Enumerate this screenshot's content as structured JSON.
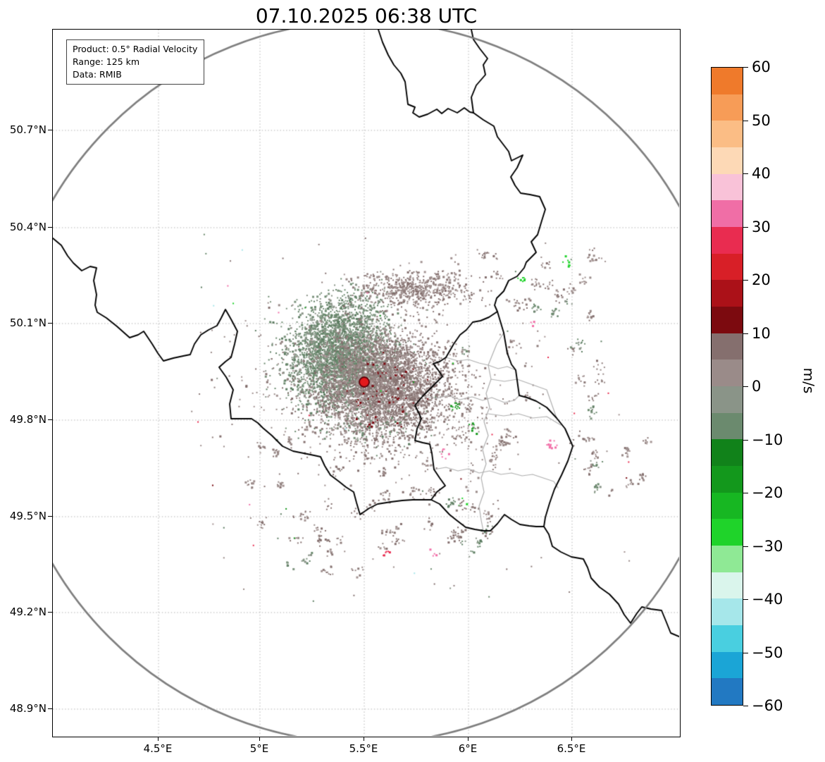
{
  "title": "07.10.2025 06:38 UTC",
  "info_box": {
    "product": "Product: 0.5° Radial Velocity",
    "range": "Range: 125 km",
    "data_source": "Data: RMIB"
  },
  "map": {
    "lat_tick_labels": [
      "50.7°N",
      "50.4°N",
      "50.1°N",
      "49.8°N",
      "49.5°N",
      "49.2°N",
      "48.9°N"
    ],
    "lon_tick_labels": [
      "4.5°E",
      "5°E",
      "5.5°E",
      "6°E",
      "6.5°E"
    ],
    "range_circle_color": "#7f7f7f",
    "radar_site_color": "#e31a1c",
    "radar_site_edge_color": "#5c0009",
    "country_border_color": "#000000",
    "district_border_color": "#b0b0b0",
    "gridline_color": "#b5b5b5",
    "echo_colors": {
      "outbound_weak": "#9a8b89",
      "outbound_dark": "#846f6e",
      "inbound_weak": "#8a9488",
      "inbound_sage": "#6b8a6e",
      "outbound_strong": "#790910",
      "inbound_strong": "#13981c"
    }
  },
  "colorbar": {
    "label": "m/s",
    "tick_labels": [
      "60",
      "50",
      "40",
      "30",
      "20",
      "10",
      "0",
      "−10",
      "−20",
      "−30",
      "−40",
      "−50",
      "−60"
    ],
    "value_min": -60,
    "value_max": 60,
    "band_colors_top_to_bottom": [
      "#ef7a2b",
      "#f79c57",
      "#fbbd85",
      "#fdd9b6",
      "#f9c2d8",
      "#f06ea6",
      "#e92c50",
      "#d81f27",
      "#ab1118",
      "#7c0a0f",
      "#856f6e",
      "#9a8b89",
      "#8a9488",
      "#6b8a6e",
      "#11821a",
      "#13981c",
      "#17b722",
      "#1fd32a",
      "#8fe995",
      "#daf5ec",
      "#a6e7ea",
      "#49cfe0",
      "#1ba5d6",
      "#2279c2"
    ]
  }
}
